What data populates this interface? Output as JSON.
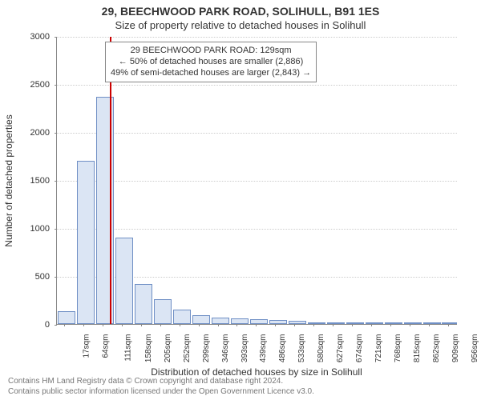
{
  "title": "29, BEECHWOOD PARK ROAD, SOLIHULL, B91 1ES",
  "subtitle": "Size of property relative to detached houses in Solihull",
  "ylabel": "Number of detached properties",
  "xlabel": "Distribution of detached houses by size in Solihull",
  "footer_line1": "Contains HM Land Registry data © Crown copyright and database right 2024.",
  "footer_line2": "Contains public sector information licensed under the Open Government Licence v3.0.",
  "chart": {
    "type": "histogram",
    "background_color": "#ffffff",
    "grid_color": "#cccccc",
    "axis_color": "#888888",
    "bar_fill": "#dbe5f4",
    "bar_stroke": "#6f8fc5",
    "bar_width": 0.92,
    "marker_color": "#cc0000",
    "marker_value": 129,
    "xmin": 0,
    "xmax": 980,
    "ymin": 0,
    "ymax": 3000,
    "ytick_step": 500,
    "xticks": [
      17,
      64,
      111,
      158,
      205,
      252,
      299,
      346,
      393,
      439,
      486,
      533,
      580,
      627,
      674,
      721,
      768,
      815,
      862,
      909,
      956
    ],
    "bars": [
      {
        "x0": 0,
        "x1": 47,
        "value": 130
      },
      {
        "x0": 47,
        "x1": 94,
        "value": 1700
      },
      {
        "x0": 94,
        "x1": 141,
        "value": 2370
      },
      {
        "x0": 141,
        "x1": 188,
        "value": 900
      },
      {
        "x0": 188,
        "x1": 235,
        "value": 420
      },
      {
        "x0": 235,
        "x1": 282,
        "value": 260
      },
      {
        "x0": 282,
        "x1": 329,
        "value": 150
      },
      {
        "x0": 329,
        "x1": 376,
        "value": 90
      },
      {
        "x0": 376,
        "x1": 423,
        "value": 70
      },
      {
        "x0": 423,
        "x1": 470,
        "value": 60
      },
      {
        "x0": 470,
        "x1": 517,
        "value": 50
      },
      {
        "x0": 517,
        "x1": 564,
        "value": 40
      },
      {
        "x0": 564,
        "x1": 611,
        "value": 30
      },
      {
        "x0": 611,
        "x1": 658,
        "value": 10
      },
      {
        "x0": 658,
        "x1": 705,
        "value": 10
      },
      {
        "x0": 705,
        "x1": 752,
        "value": 5
      },
      {
        "x0": 752,
        "x1": 799,
        "value": 5
      },
      {
        "x0": 799,
        "x1": 846,
        "value": 3
      },
      {
        "x0": 846,
        "x1": 893,
        "value": 3
      },
      {
        "x0": 893,
        "x1": 940,
        "value": 2
      },
      {
        "x0": 940,
        "x1": 980,
        "value": 2
      }
    ]
  },
  "annotation": {
    "line1": "29 BEECHWOOD PARK ROAD: 129sqm",
    "line2": "← 50% of detached houses are smaller (2,886)",
    "line3": "49% of semi-detached houses are larger (2,843) →"
  },
  "label_fontsize": 12,
  "tick_fontsize": 11
}
